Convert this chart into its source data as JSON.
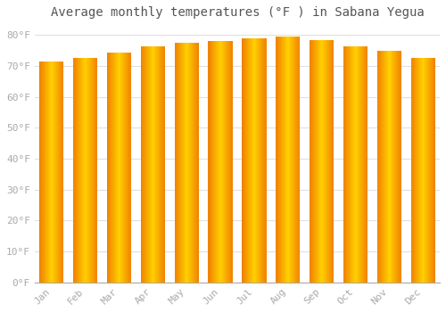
{
  "title": "Average monthly temperatures (°F ) in Sabana Yegua",
  "months": [
    "Jan",
    "Feb",
    "Mar",
    "Apr",
    "May",
    "Jun",
    "Jul",
    "Aug",
    "Sep",
    "Oct",
    "Nov",
    "Dec"
  ],
  "values": [
    71.5,
    72.5,
    74.5,
    76.5,
    77.5,
    78.0,
    79.0,
    79.5,
    78.5,
    76.5,
    75.0,
    72.5
  ],
  "bar_color_center": "#FFD000",
  "bar_color_edge": "#F08000",
  "background_color": "#ffffff",
  "plot_bg_color": "#ffffff",
  "grid_color": "#e0e0e0",
  "ytick_labels": [
    "0°F",
    "10°F",
    "20°F",
    "30°F",
    "40°F",
    "50°F",
    "60°F",
    "70°F",
    "80°F"
  ],
  "ytick_values": [
    0,
    10,
    20,
    30,
    40,
    50,
    60,
    70,
    80
  ],
  "ylim": [
    0,
    83
  ],
  "title_fontsize": 10,
  "tick_fontsize": 8,
  "font_color": "#aaaaaa"
}
